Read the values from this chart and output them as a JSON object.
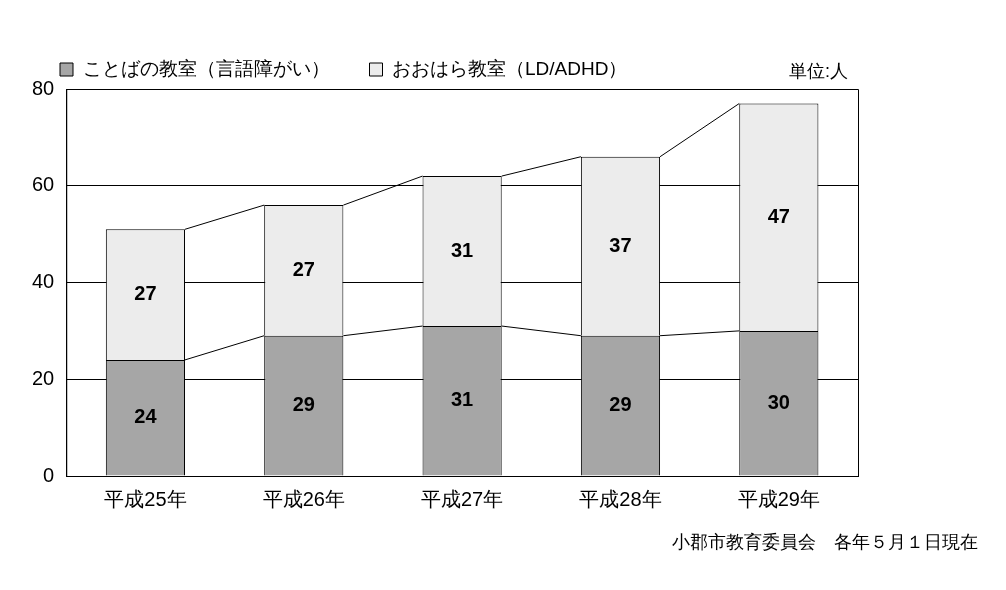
{
  "chart_data": {
    "type": "bar",
    "stacked": true,
    "categories": [
      "平成25年",
      "平成26年",
      "平成27年",
      "平成28年",
      "平成29年"
    ],
    "series": [
      {
        "name": "ことばの教室（言語障がい）",
        "color": "#a6a6a6",
        "values": [
          24,
          29,
          31,
          29,
          30
        ]
      },
      {
        "name": "おおはら教室（LD/ADHD）",
        "color": "#ececec",
        "values": [
          27,
          27,
          31,
          37,
          47
        ]
      }
    ],
    "ylim": [
      0,
      80
    ],
    "yticks": [
      0,
      20,
      40,
      60,
      80
    ],
    "grid": "y",
    "legend": "top",
    "data_labels": true,
    "annotations": [
      "単位:人",
      "小郡市教育委員会　各年５月１日現在"
    ]
  }
}
